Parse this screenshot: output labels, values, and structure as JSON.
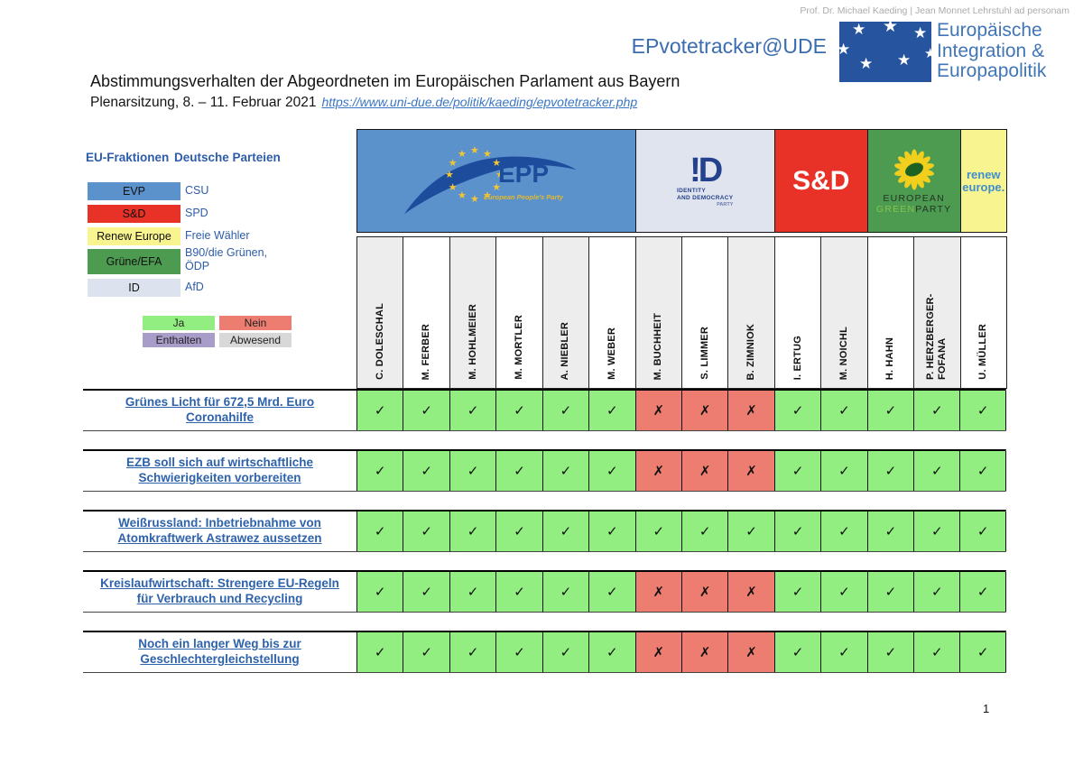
{
  "header": {
    "credit": "Prof. Dr. Michael Kaeding | Jean Monnet Lehrstuhl ad personam",
    "brand": "EPvotetracker@UDE",
    "institute": {
      "lines": [
        "Europäische",
        "Integration &",
        "Europapolitik"
      ]
    },
    "title": "Abstimmungsverhalten der Abgeordneten im Europäischen Parlament aus Bayern",
    "subtitle": "Plenarsitzung, 8. – 11. Februar 2021",
    "link": "https://www.uni-due.de/politik/kaeding/epvotetracker.php"
  },
  "legend": {
    "fractions_header": "EU-Fraktionen",
    "parties_header": "Deutsche Parteien",
    "rows": [
      {
        "fraction": "EVP",
        "party": "CSU",
        "color": "#5c92cb"
      },
      {
        "fraction": "S&D",
        "party": "SPD",
        "color": "#e83127"
      },
      {
        "fraction": "Renew Europe",
        "party": "Freie Wähler",
        "color": "#f8f48f"
      },
      {
        "fraction": "Grüne/EFA",
        "party": "B90/die Grünen,\nÖDP",
        "color": "#4d9b51"
      },
      {
        "fraction": "ID",
        "party": "AfD",
        "color": "#dde3ee"
      }
    ],
    "vote_keys": [
      {
        "key": "ja",
        "label": "Ja",
        "color": "#92ee80"
      },
      {
        "key": "nein",
        "label": "Nein",
        "color": "#ec7d70"
      },
      {
        "key": "enthalten",
        "label": "Enthalten",
        "color": "#a89cc9"
      },
      {
        "key": "abwesend",
        "label": "Abwesend",
        "color": "#d8d8d8"
      }
    ]
  },
  "table": {
    "groups": [
      {
        "id": "epp",
        "cols": 6,
        "bg": "#5c92cb",
        "label": "EPP",
        "sublabel": "European People's Party"
      },
      {
        "id": "id",
        "cols": 3,
        "bg": "#e0e4ee",
        "mark": "!D",
        "lines": [
          "IDENTITY",
          "AND DEMOCRACY",
          "PARTY"
        ]
      },
      {
        "id": "sd",
        "cols": 2,
        "bg": "#e83127",
        "label": "S&D"
      },
      {
        "id": "greens",
        "cols": 2,
        "bg": "#4d9b51",
        "label": "EUROPEAN",
        "green_word": "GREEN",
        "party_word": "PARTY"
      },
      {
        "id": "renew",
        "cols": 1,
        "bg": "#f8f48f",
        "lines": [
          "renew",
          "europe."
        ]
      }
    ],
    "meps": [
      "C. DOLESCHAL",
      "M. FERBER",
      "M. HOHLMEIER",
      "M. MORTLER",
      "A. NIEBLER",
      "M. WEBER",
      "M. BUCHHEIT",
      "S. LIMMER",
      "B. ZIMNIOK",
      "I. ERTUG",
      "M. NOICHL",
      "H. HAHN",
      "P. HERZBERGER-FOFANA",
      "U. MÜLLER"
    ],
    "rows": [
      {
        "topic": "Grünes Licht für 672,5 Mrd. Euro Coronahilfe",
        "votes": [
          "ja",
          "ja",
          "ja",
          "ja",
          "ja",
          "ja",
          "nein",
          "nein",
          "nein",
          "ja",
          "ja",
          "ja",
          "ja",
          "ja"
        ]
      },
      {
        "topic": "EZB soll sich auf wirtschaftliche Schwierigkeiten vorbereiten",
        "votes": [
          "ja",
          "ja",
          "ja",
          "ja",
          "ja",
          "ja",
          "nein",
          "nein",
          "nein",
          "ja",
          "ja",
          "ja",
          "ja",
          "ja"
        ]
      },
      {
        "topic": "Weißrussland: Inbetriebnahme von Atomkraftwerk Astrawez aussetzen",
        "votes": [
          "ja",
          "ja",
          "ja",
          "ja",
          "ja",
          "ja",
          "ja",
          "ja",
          "ja",
          "ja",
          "ja",
          "ja",
          "ja",
          "ja"
        ]
      },
      {
        "topic": "Kreislaufwirtschaft: Strengere EU-Regeln für Verbrauch und Recycling",
        "votes": [
          "ja",
          "ja",
          "ja",
          "ja",
          "ja",
          "ja",
          "nein",
          "nein",
          "nein",
          "ja",
          "ja",
          "ja",
          "ja",
          "ja"
        ]
      },
      {
        "topic": "Noch ein langer Weg bis zur Geschlechtergleichstellung",
        "votes": [
          "ja",
          "ja",
          "ja",
          "ja",
          "ja",
          "ja",
          "nein",
          "nein",
          "nein",
          "ja",
          "ja",
          "ja",
          "ja",
          "ja"
        ]
      }
    ],
    "marks": {
      "ja": "✓",
      "nein": "✗"
    }
  },
  "icons": {
    "star": "★"
  },
  "footer": {
    "page_number": "1"
  }
}
